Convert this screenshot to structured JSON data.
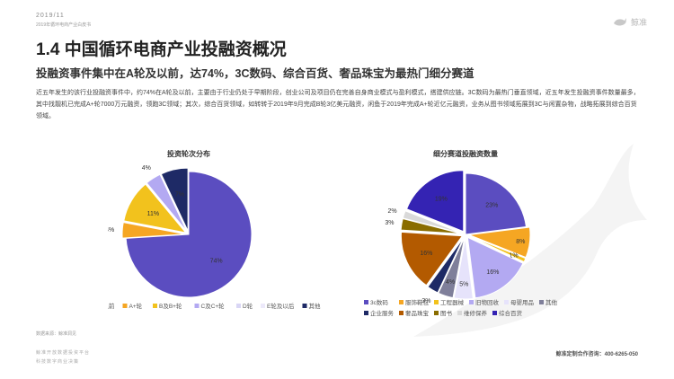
{
  "header": {
    "date": "2019/11",
    "report_name": "2019年循环电商产业白皮书",
    "logo_text": "鲸准"
  },
  "title": "1.4 中国循环电商产业投融资概况",
  "subtitle": "投融资事件集中在A轮及以前，达74%，3C数码、综合百货、奢品珠宝为最热门细分赛道",
  "body_text": "近五年发生的该行业投融资事件中，约74%在A轮及以前，主要由于行业仍处于早期阶段，创业公司及项目仍在完善自身商业模式与盈利模式，搭建供应链。3C数码为最热门垂直领域，近五年发生投融资事件数量最多，其中找靓机已完成A+轮7000万元融资，领跑3C领域；其次，综合百货领域，如转转于2019年9月完成B轮3亿美元融资，闲鱼于2019年完成A+轮近亿元融资，业务从图书领域拓展到3C与闲置杂物，战略拓展到综合百货领域。",
  "source": "数据来源：鲸准洞见",
  "footer": {
    "left1": "鲸准开放数据投资平台",
    "left2": "科技数字商业决策",
    "right": "鲸准定制合作咨询：400-6265-050"
  },
  "chart_data": [
    {
      "type": "pie",
      "title": "投资轮次分布",
      "labels": [
        "A轮及以前",
        "A+轮",
        "B及B+轮",
        "C及C+轮",
        "D轮",
        "E轮及以后",
        "其他"
      ],
      "values": [
        74,
        4,
        11,
        4,
        0,
        0,
        7
      ],
      "value_labels": [
        "74%",
        "4%",
        "11%",
        "4%",
        "",
        "",
        "7%"
      ],
      "colors": [
        "#5b4dc0",
        "#f5a623",
        "#f2c21d",
        "#b3a9f2",
        "#d9d6f5",
        "#ece9fa",
        "#1e2a66"
      ],
      "legend_position": "bottom"
    },
    {
      "type": "pie",
      "title": "细分赛道投融资数量",
      "labels": [
        "3c数码",
        "服饰鞋包",
        "工程器械",
        "旧物回收",
        "母婴用品",
        "其他",
        "企业服务",
        "奢品珠宝",
        "图书",
        "维修保养",
        "综合百货"
      ],
      "values": [
        23,
        8,
        1,
        16,
        5,
        4,
        3,
        16,
        3,
        2,
        19
      ],
      "value_labels": [
        "23%",
        "8%",
        "1%",
        "16%",
        "5%",
        "4%",
        "3%",
        "16%",
        "3%",
        "2%",
        "19%"
      ],
      "colors": [
        "#5b4dc0",
        "#f5a623",
        "#f2c21d",
        "#b3a9f2",
        "#e6e3fb",
        "#7f7f9a",
        "#1e2a66",
        "#b35a00",
        "#8a6d00",
        "#d9d9d9",
        "#3423b3"
      ],
      "legend_position": "bottom"
    }
  ]
}
